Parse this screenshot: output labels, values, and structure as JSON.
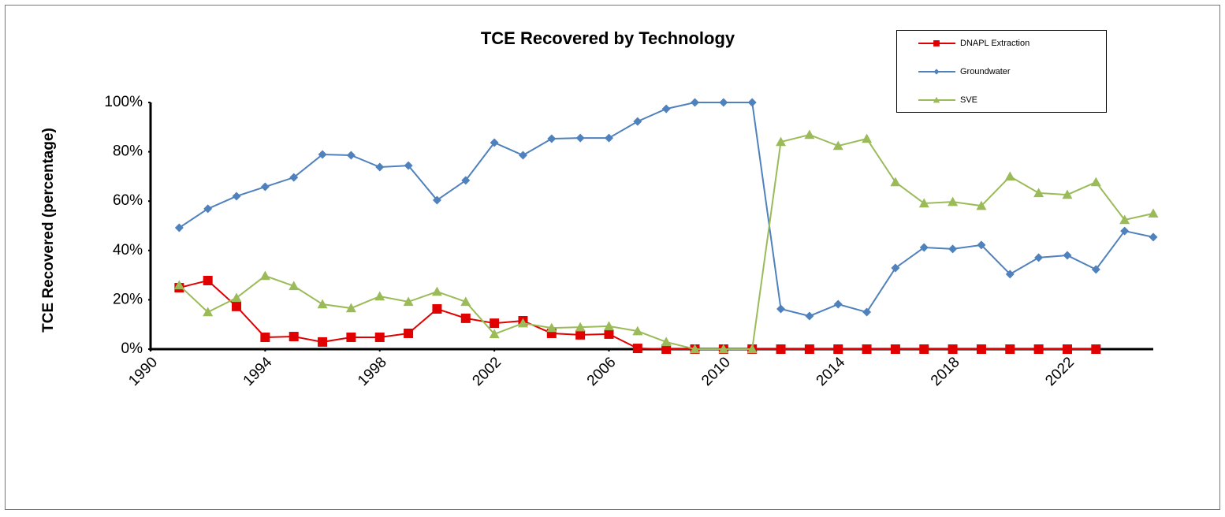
{
  "chart_data": {
    "type": "line",
    "title": "TCE Recovered by Technology",
    "y_label": "TCE Recovered (percentage)",
    "x": [
      1991,
      1992,
      1993,
      1994,
      1995,
      1996,
      1997,
      1998,
      1999,
      2000,
      2001,
      2002,
      2003,
      2004,
      2005,
      2006,
      2007,
      2008,
      2009,
      2010,
      2011,
      2012,
      2013,
      2014,
      2015,
      2016,
      2017,
      2018,
      2019,
      2020,
      2021,
      2022,
      2023,
      2024,
      2025
    ],
    "series": [
      {
        "name": "DNAPL Extraction",
        "color": "#e00000",
        "marker": "square",
        "values": [
          24.9,
          27.8,
          17.3,
          4.8,
          5.1,
          2.9,
          4.8,
          4.8,
          6.4,
          16.3,
          12.5,
          10.5,
          11.5,
          6.4,
          5.8,
          6.1,
          0.3,
          0,
          0,
          0,
          0,
          0,
          0,
          0,
          0,
          0,
          0,
          0,
          0,
          0,
          0,
          0,
          0,
          null,
          null
        ]
      },
      {
        "name": "Groundwater",
        "color": "#4f81bd",
        "marker": "diamond",
        "values": [
          49.2,
          56.9,
          62,
          65.8,
          69.6,
          78.9,
          78.6,
          73.8,
          74.4,
          60.4,
          68.4,
          83.7,
          78.6,
          85.3,
          85.6,
          85.6,
          92.3,
          97.4,
          100,
          100,
          100,
          16.3,
          13.4,
          18.2,
          15,
          32.9,
          41.2,
          40.6,
          42.2,
          30.4,
          37.1,
          38,
          32.3,
          47.9,
          45.4
        ]
      },
      {
        "name": "SVE",
        "color": "#9bbb59",
        "marker": "triangle",
        "values": [
          25.9,
          15,
          20.8,
          29.7,
          25.6,
          18.2,
          16.6,
          21.4,
          19.2,
          23.3,
          19.2,
          6.1,
          10.5,
          8.6,
          8.9,
          9.3,
          7.3,
          2.9,
          0,
          0,
          0,
          84,
          86.9,
          82.4,
          85.3,
          67.7,
          59.1,
          59.7,
          58.1,
          70,
          63.3,
          62.6,
          67.7,
          52.4,
          55
        ]
      }
    ],
    "xlim": [
      1990,
      2025
    ],
    "xticks": [
      1990,
      1994,
      1998,
      2002,
      2006,
      2010,
      2014,
      2018,
      2022
    ],
    "ylim": [
      0,
      100
    ],
    "yticks": [
      {
        "value": 0,
        "label": "0%"
      },
      {
        "value": 20,
        "label": "20%"
      },
      {
        "value": 40,
        "label": "40%"
      },
      {
        "value": 60,
        "label": "60%"
      },
      {
        "value": 80,
        "label": "80%"
      },
      {
        "value": 100,
        "label": "100%"
      }
    ],
    "legend": "top-right"
  }
}
